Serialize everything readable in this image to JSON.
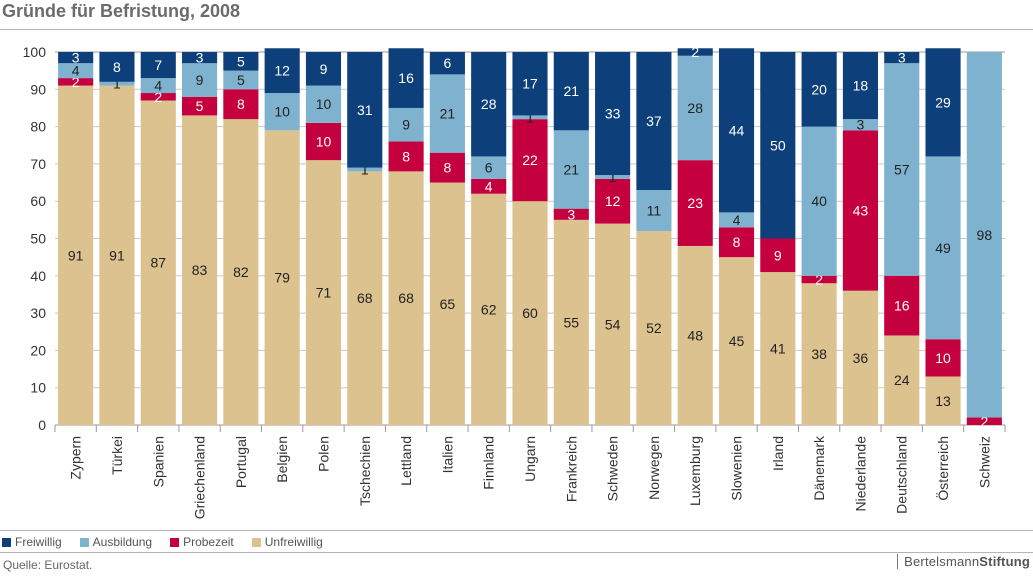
{
  "title": "Gründe für Befristung, 2008",
  "source": "Quelle: Eurostat.",
  "logo": {
    "part1": "Bertelsmann",
    "part2": "Stiftung"
  },
  "colors": {
    "Freiwillig": "#0d3f7a",
    "Ausbildung": "#7fb2ce",
    "Probezeit": "#c5003e",
    "Unfreiwillig": "#dcc28e"
  },
  "chart_data": {
    "type": "bar",
    "stacked": true,
    "ylim": [
      0,
      100
    ],
    "yticks": [
      0,
      10,
      20,
      30,
      40,
      50,
      60,
      70,
      80,
      90,
      100
    ],
    "grid": true,
    "legend_position": "bottom",
    "categories": [
      "Zypern",
      "Türkei",
      "Spanien",
      "Griechenland",
      "Portugal",
      "Belgien",
      "Polen",
      "Tschechien",
      "Lettland",
      "Italien",
      "Finnland",
      "Ungarn",
      "Frankreich",
      "Schweden",
      "Norwegen",
      "Luxemburg",
      "Slowenien",
      "Irland",
      "Dänemark",
      "Niederlande",
      "Deutschland",
      "Österreich",
      "Schweiz"
    ],
    "series": [
      {
        "name": "Unfreiwillig",
        "values": [
          91,
          91,
          87,
          83,
          82,
          79,
          71,
          68,
          68,
          65,
          62,
          60,
          55,
          54,
          52,
          48,
          45,
          41,
          38,
          36,
          24,
          13,
          0
        ]
      },
      {
        "name": "Probezeit",
        "values": [
          2,
          0,
          2,
          5,
          8,
          0,
          10,
          0,
          8,
          8,
          4,
          22,
          3,
          12,
          0,
          23,
          8,
          9,
          2,
          43,
          16,
          10,
          2
        ]
      },
      {
        "name": "Ausbildung",
        "values": [
          4,
          1,
          4,
          9,
          5,
          10,
          10,
          1,
          9,
          21,
          6,
          1,
          21,
          1,
          11,
          28,
          4,
          0,
          40,
          3,
          57,
          49,
          98
        ]
      },
      {
        "name": "Freiwillig",
        "values": [
          3,
          8,
          7,
          3,
          5,
          12,
          9,
          31,
          16,
          6,
          28,
          17,
          21,
          33,
          37,
          2,
          44,
          50,
          20,
          18,
          3,
          29,
          0
        ]
      }
    ],
    "legend_order": [
      "Freiwillig",
      "Ausbildung",
      "Probezeit",
      "Unfreiwillig"
    ]
  }
}
